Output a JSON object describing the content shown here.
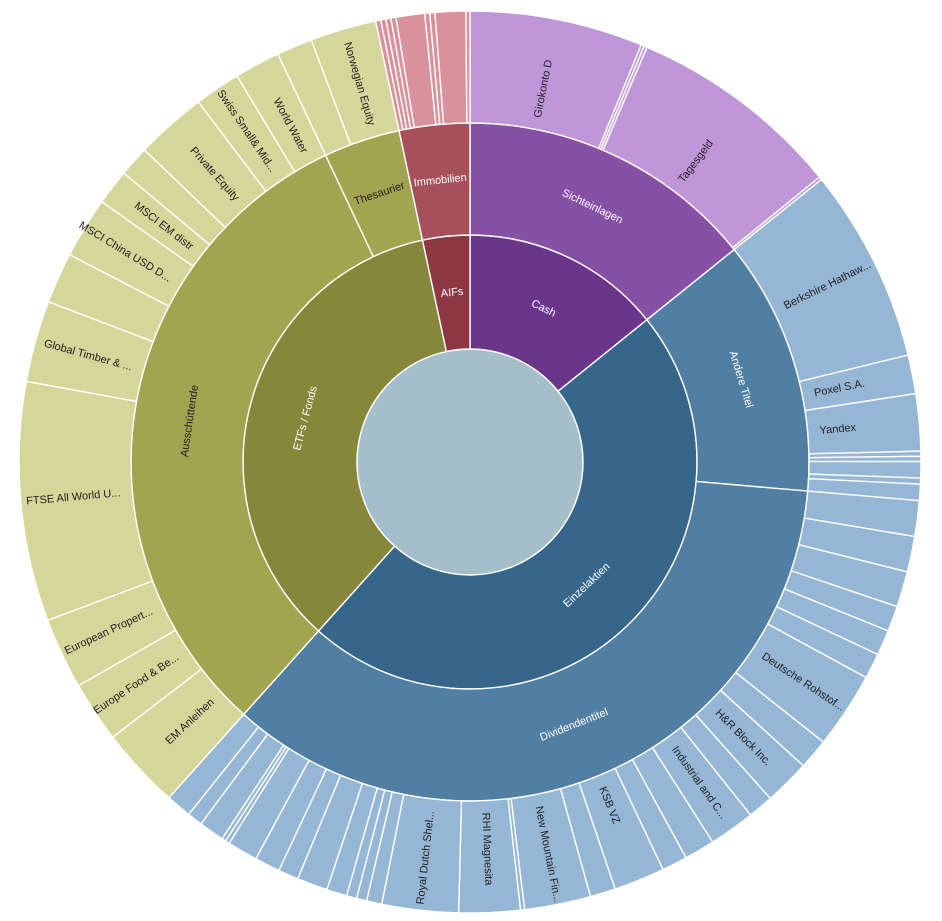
{
  "chart_data": {
    "type": "sunburst",
    "title": "",
    "colors": {
      "center": "#a5bfca",
      "cash_l1": "#6a358a",
      "cash_l2": "#8651a5",
      "cash_l3": "#bf97d8",
      "einzel_l1": "#36668a",
      "einzel_l2": "#517fa3",
      "einzel_l3": "#96b6d5",
      "etf_l1": "#86873a",
      "etf_l2": "#a2a44f",
      "etf_l3": "#d5d69a",
      "aif_l1": "#8c3743",
      "aif_l2": "#a6505c",
      "aif_l3": "#d9929b",
      "label_dark": "#222222",
      "label_light": "#ffffff"
    },
    "groups": [
      {
        "name": "Cash",
        "color_key": "cash",
        "children": [
          {
            "name": "Sichteinlagen",
            "children": [
              {
                "name": "Girokonto D",
                "value": 17.0
              },
              {
                "name": "",
                "value": 0.3
              },
              {
                "name": "",
                "value": 0.3
              },
              {
                "name": "Tagesgeld",
                "value": 21.1
              },
              {
                "name": "",
                "value": 0.3
              }
            ]
          }
        ]
      },
      {
        "name": "Einzelaktien",
        "color_key": "einzel",
        "children": [
          {
            "name": "Andere Titel",
            "children": [
              {
                "name": "Berkshire Hathaw...",
                "value": 19.1
              },
              {
                "name": "Poxel S.A.",
                "value": 3.8
              },
              {
                "name": "Yandex",
                "value": 5.6
              },
              {
                "name": "",
                "value": 0.5
              },
              {
                "name": "",
                "value": 0.5
              },
              {
                "name": "",
                "value": 1.6
              },
              {
                "name": "",
                "value": 0.6
              },
              {
                "name": "",
                "value": 1.6
              }
            ]
          },
          {
            "name": "Dividendentitel",
            "children": [
              {
                "name": "",
                "value": 3.5
              },
              {
                "name": "",
                "value": 3.5
              },
              {
                "name": "",
                "value": 3.5
              },
              {
                "name": "",
                "value": 2.5
              },
              {
                "name": "",
                "value": 2.5
              },
              {
                "name": "",
                "value": 2.5
              },
              {
                "name": "Deutsche Rohstof...",
                "value": 7.5
              },
              {
                "name": "",
                "value": 3.0
              },
              {
                "name": "H&R Block Inc.",
                "value": 4.5
              },
              {
                "name": "",
                "value": 2.5
              },
              {
                "name": "Industrial and C...",
                "value": 4.5
              },
              {
                "name": "",
                "value": 3.0
              },
              {
                "name": "",
                "value": 2.5
              },
              {
                "name": "KSB VZ",
                "value": 5.0
              },
              {
                "name": "",
                "value": 2.5
              },
              {
                "name": "New Mountain Fin...",
                "value": 6.5
              },
              {
                "name": "",
                "value": 0.4
              },
              {
                "name": "RHI Magnesita",
                "value": 6.0
              },
              {
                "name": "Royal Dutch Shel...",
                "value": 7.5
              },
              {
                "name": "",
                "value": 1.5
              },
              {
                "name": "",
                "value": 1.0
              },
              {
                "name": "",
                "value": 1.0
              },
              {
                "name": "",
                "value": 2.0
              },
              {
                "name": "",
                "value": 3.0
              },
              {
                "name": "",
                "value": 2.0
              },
              {
                "name": "",
                "value": 2.5
              },
              {
                "name": "",
                "value": 3.0
              },
              {
                "name": "",
                "value": 0.4
              },
              {
                "name": "",
                "value": 0.4
              },
              {
                "name": "",
                "value": 2.5
              },
              {
                "name": "",
                "value": 1.5
              },
              {
                "name": "",
                "value": 2.5
              }
            ]
          }
        ]
      },
      {
        "name": "ETFs / Fonds",
        "color_key": "etf",
        "children": [
          {
            "name": "Ausschüttende",
            "children": [
              {
                "name": "EM Anleihen",
                "value": 8.0
              },
              {
                "name": "Europe Food & Be...",
                "value": 6.0
              },
              {
                "name": "European Propert...",
                "value": 7.0
              },
              {
                "name": "FTSE All World U...",
                "value": 23.5
              },
              {
                "name": "Global Timber & ...",
                "value": 8.0
              },
              {
                "name": "",
                "value": 5.0
              },
              {
                "name": "MSCI China USD D...",
                "value": 6.0
              },
              {
                "name": "MSCI EM distr",
                "value": 3.5
              },
              {
                "name": "",
                "value": 3.0
              },
              {
                "name": "Private Equity",
                "value": 7.0
              },
              {
                "name": "Swiss Small& Mid...",
                "value": 4.5
              },
              {
                "name": "World Water",
                "value": 4.5
              }
            ]
          },
          {
            "name": "Thesaurier",
            "children": [
              {
                "name": "",
                "value": 3.5
              },
              {
                "name": "Norwegian Equity",
                "value": 6.5
              }
            ]
          }
        ]
      },
      {
        "name": "AIFs",
        "color_key": "aif",
        "children": [
          {
            "name": "Immobilien",
            "children": [
              {
                "name": "",
                "value": 0.5
              },
              {
                "name": "",
                "value": 0.5
              },
              {
                "name": "",
                "value": 0.5
              },
              {
                "name": "",
                "value": 0.5
              },
              {
                "name": "",
                "value": 2.8
              },
              {
                "name": "",
                "value": 0.5
              },
              {
                "name": "",
                "value": 0.5
              },
              {
                "name": "",
                "value": 3.0
              },
              {
                "name": "",
                "value": 0.4
              }
            ]
          }
        ]
      }
    ]
  }
}
